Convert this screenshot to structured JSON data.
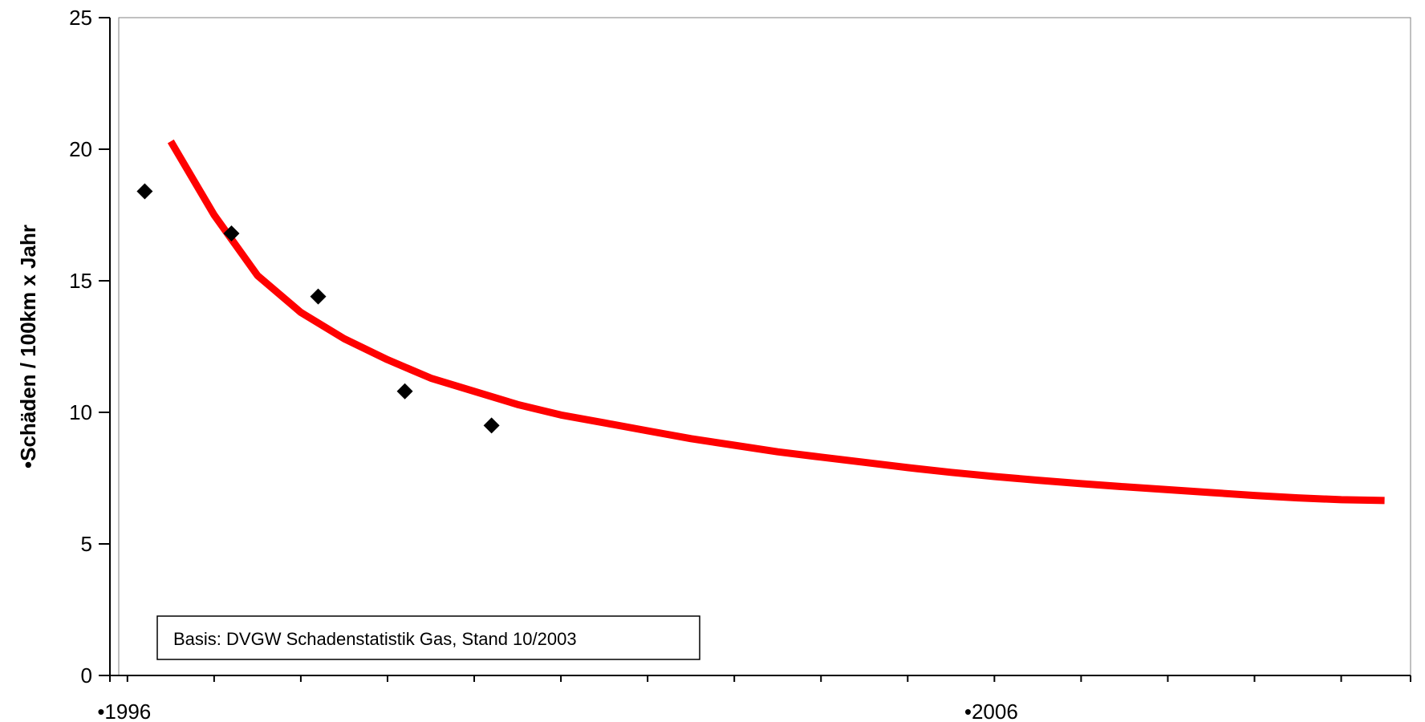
{
  "chart_data": {
    "type": "scatter",
    "title": "",
    "xlabel": "",
    "ylabel": "•Schäden /  100km x Jahr",
    "xlim": [
      1995.9,
      2010.8
    ],
    "ylim": [
      0,
      25
    ],
    "y_ticks": [
      0,
      5,
      10,
      15,
      20,
      25
    ],
    "y_tick_labels": [
      "0",
      "5",
      "10",
      "15",
      "20",
      "25"
    ],
    "x_minor_ticks": [
      1996,
      1997,
      1998,
      1999,
      2000,
      2001,
      2002,
      2003,
      2004,
      2005,
      2006,
      2007,
      2008,
      2009,
      2010
    ],
    "x_tick_labels": [
      {
        "value": 1996,
        "label": "•1996"
      },
      {
        "value": 2006,
        "label": "•2006"
      }
    ],
    "grid": false,
    "series": [
      {
        "kind": "scatter",
        "marker": "diamond",
        "color": "#000000",
        "points": [
          {
            "x": 1996.2,
            "y": 18.4
          },
          {
            "x": 1997.2,
            "y": 16.8
          },
          {
            "x": 1998.2,
            "y": 14.4
          },
          {
            "x": 1999.2,
            "y": 10.8
          },
          {
            "x": 2000.2,
            "y": 9.5
          }
        ]
      },
      {
        "kind": "trend",
        "color": "#ff0000",
        "points": [
          {
            "x": 1996.5,
            "y": 20.3
          },
          {
            "x": 1997.0,
            "y": 17.5
          },
          {
            "x": 1997.5,
            "y": 15.2
          },
          {
            "x": 1998.0,
            "y": 13.8
          },
          {
            "x": 1998.5,
            "y": 12.8
          },
          {
            "x": 1999.0,
            "y": 12.0
          },
          {
            "x": 1999.5,
            "y": 11.3
          },
          {
            "x": 2000.0,
            "y": 10.8
          },
          {
            "x": 2000.5,
            "y": 10.3
          },
          {
            "x": 2001.0,
            "y": 9.9
          },
          {
            "x": 2001.5,
            "y": 9.6
          },
          {
            "x": 2002.0,
            "y": 9.3
          },
          {
            "x": 2002.5,
            "y": 9.0
          },
          {
            "x": 2003.0,
            "y": 8.75
          },
          {
            "x": 2003.5,
            "y": 8.5
          },
          {
            "x": 2004.0,
            "y": 8.3
          },
          {
            "x": 2004.5,
            "y": 8.1
          },
          {
            "x": 2005.0,
            "y": 7.9
          },
          {
            "x": 2005.5,
            "y": 7.72
          },
          {
            "x": 2006.0,
            "y": 7.56
          },
          {
            "x": 2006.5,
            "y": 7.42
          },
          {
            "x": 2007.0,
            "y": 7.29
          },
          {
            "x": 2007.5,
            "y": 7.17
          },
          {
            "x": 2008.0,
            "y": 7.06
          },
          {
            "x": 2008.5,
            "y": 6.95
          },
          {
            "x": 2009.0,
            "y": 6.84
          },
          {
            "x": 2009.5,
            "y": 6.75
          },
          {
            "x": 2010.0,
            "y": 6.68
          },
          {
            "x": 2010.5,
            "y": 6.65
          }
        ]
      }
    ],
    "annotation": "Basis: DVGW Schadenstatistik Gas, Stand 10/2003"
  }
}
